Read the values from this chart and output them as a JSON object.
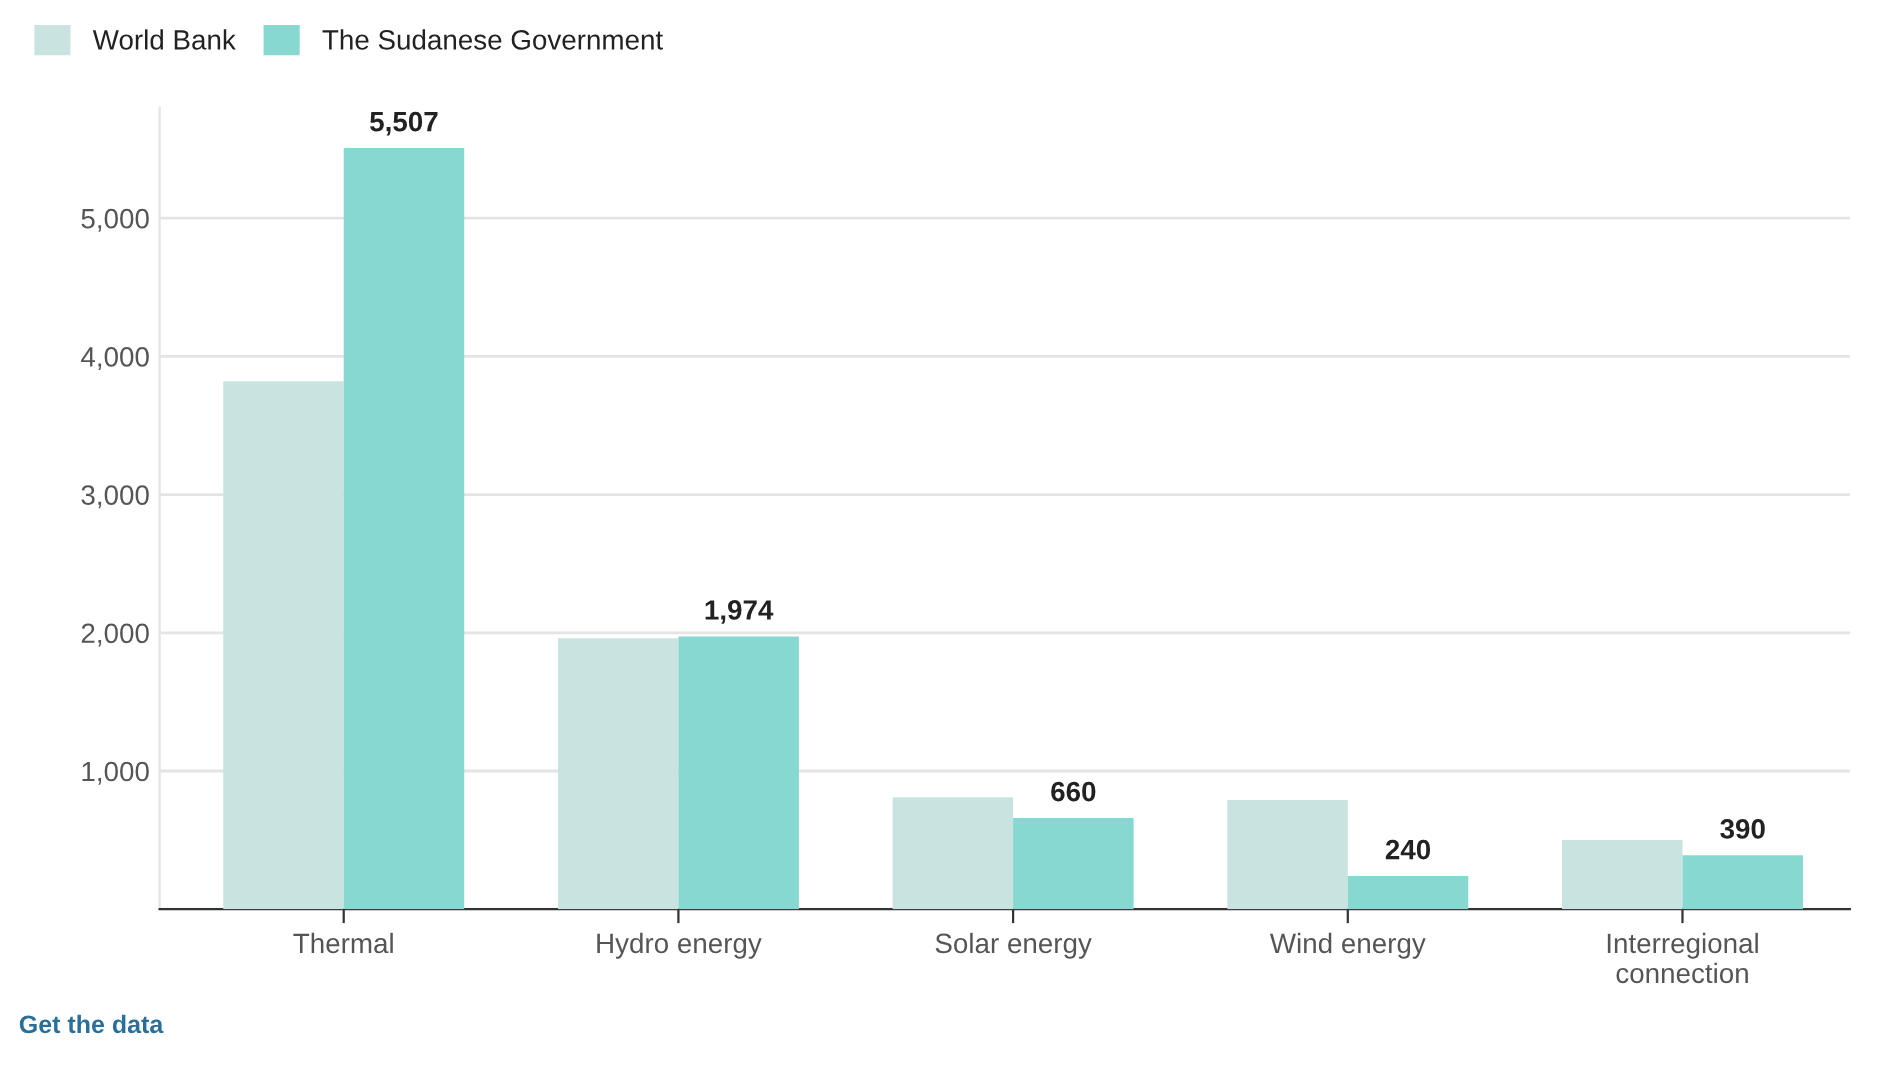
{
  "chart_data": {
    "type": "bar",
    "categories": [
      "Thermal",
      "Hydro energy",
      "Solar energy",
      "Wind energy",
      "Interregional\nconnection"
    ],
    "series": [
      {
        "name": "World Bank",
        "color": "#c9e3e1",
        "values": [
          3820,
          1960,
          810,
          790,
          500
        ]
      },
      {
        "name": "The Sudanese Government",
        "color": "#86d8d0",
        "values": [
          5507,
          1974,
          660,
          240,
          390
        ],
        "value_labels": [
          "5,507",
          "1,974",
          "660",
          "240",
          "390"
        ]
      }
    ],
    "yticks": [
      {
        "value": 0,
        "label": null
      },
      {
        "value": 1000,
        "label": "1,000"
      },
      {
        "value": 2000,
        "label": "2,000"
      },
      {
        "value": 3000,
        "label": "3,000"
      },
      {
        "value": 4000,
        "label": "4,000"
      },
      {
        "value": 5000,
        "label": "5,000"
      }
    ],
    "ylim": [
      0,
      5800
    ],
    "grid": "y",
    "legend": "top left",
    "annotations": [
      "Get the data"
    ]
  }
}
